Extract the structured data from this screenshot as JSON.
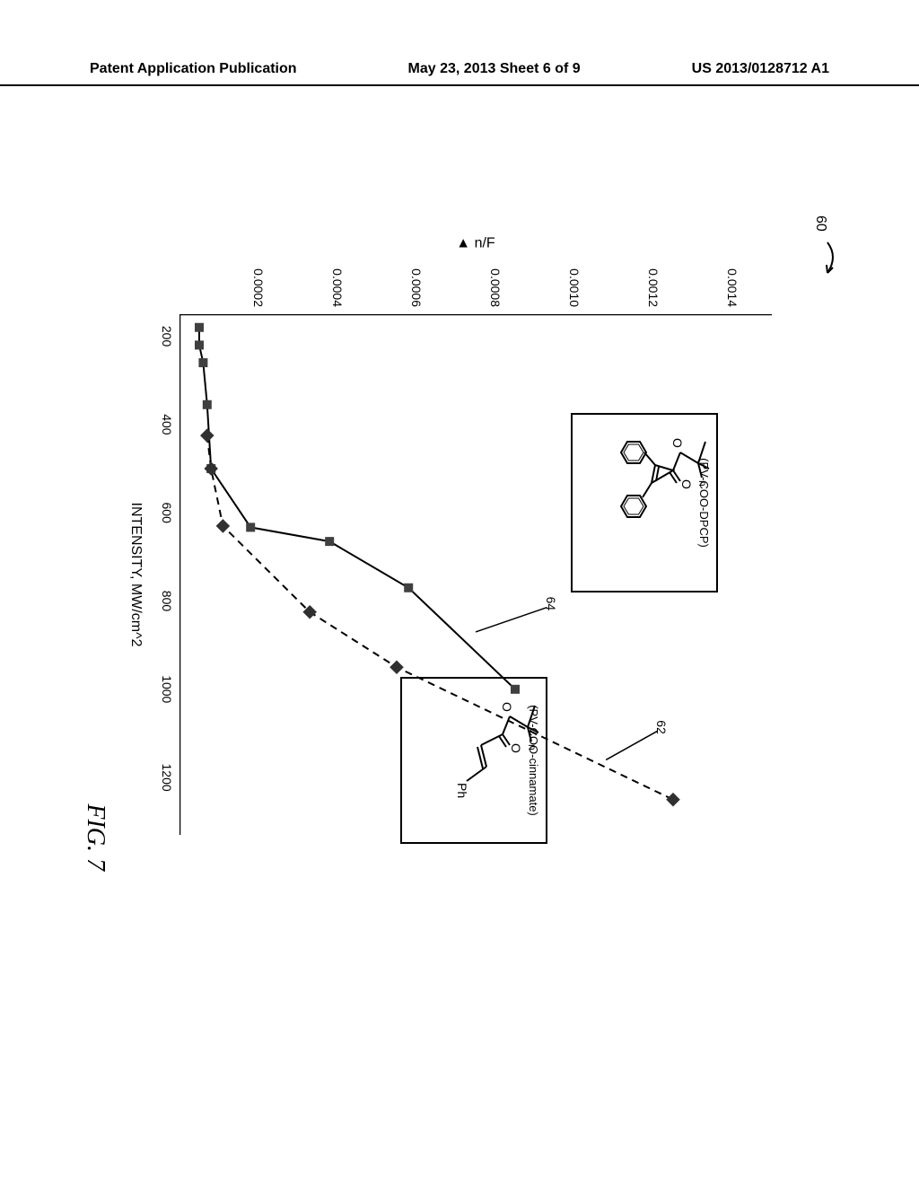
{
  "header": {
    "left": "Patent Application Publication",
    "center": "May 23, 2013  Sheet 6 of 9",
    "right": "US 2013/0128712 A1"
  },
  "figure": {
    "ref_number": "60",
    "ref_62": "62",
    "ref_64": "64",
    "fig_label": "FIG. 7",
    "x_axis_title": "INTENSITY, MW/cm^2",
    "y_axis_title": "▲ n/F",
    "chart": {
      "type": "scatter-line",
      "background_color": "#ffffff",
      "axis_color": "#000000",
      "xlim": [
        150,
        1330
      ],
      "ylim": [
        0,
        0.0015
      ],
      "xticks": [
        200,
        400,
        600,
        800,
        1000,
        1200
      ],
      "yticks": [
        0.0002,
        0.0004,
        0.0006,
        0.0008,
        0.001,
        0.0012,
        0.0014
      ],
      "ytick_labels": [
        "0.0002",
        "0.0004",
        "0.0006",
        "0.0008",
        "0.0010",
        "0.0012",
        "0.0014"
      ],
      "tick_length": 6,
      "series_64": {
        "name": "PV-COO-DPCP",
        "marker": "square",
        "marker_size": 10,
        "marker_color": "#404040",
        "line_style": "solid",
        "line_color": "#000000",
        "line_width": 2,
        "x": [
          180,
          220,
          260,
          355,
          500,
          633,
          665,
          770,
          1000
        ],
        "y": [
          5e-05,
          5e-05,
          6e-05,
          7e-05,
          8e-05,
          0.00018,
          0.00038,
          0.00058,
          0.00085
        ]
      },
      "series_62": {
        "name": "PV-COO-cinnamate",
        "marker": "diamond",
        "marker_size": 11,
        "marker_color": "#303030",
        "line_style": "dashed",
        "line_color": "#000000",
        "line_width": 2,
        "x": [
          425,
          500,
          630,
          825,
          950,
          1250
        ],
        "y": [
          7e-05,
          8e-05,
          0.00011,
          0.00033,
          0.00055,
          0.00125
        ]
      }
    },
    "chem_a": {
      "label": "(PV-COO-DPCP)",
      "atoms": [
        "O",
        "O",
        "n"
      ]
    },
    "chem_b": {
      "label": "(PV-COO-cinnamate)",
      "atoms": [
        "O",
        "O",
        "Ph",
        "n"
      ]
    }
  }
}
